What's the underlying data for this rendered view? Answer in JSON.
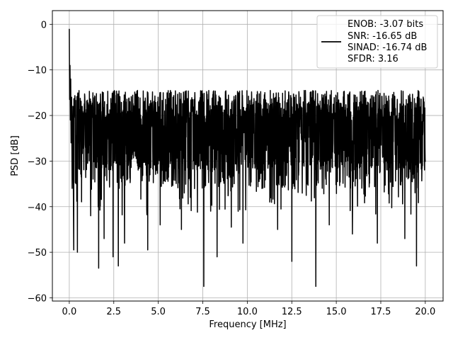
{
  "chart_data": {
    "type": "line",
    "xlabel": "Frequency [MHz]",
    "ylabel": "PSD [dB]",
    "xlim": [
      -0.95,
      21.0
    ],
    "ylim": [
      -60.7,
      3.0
    ],
    "xticks": [
      0.0,
      2.5,
      5.0,
      7.5,
      10.0,
      12.5,
      15.0,
      17.5,
      20.0
    ],
    "xtick_labels": [
      "0.0",
      "2.5",
      "5.0",
      "7.5",
      "10.0",
      "12.5",
      "15.0",
      "17.5",
      "20.0"
    ],
    "yticks": [
      0,
      -10,
      -20,
      -30,
      -40,
      -50,
      -60
    ],
    "ytick_labels": [
      "0",
      "−10",
      "−20",
      "−30",
      "−40",
      "−50",
      "−60"
    ],
    "grid": true,
    "legend_position": "top-right",
    "series_color": "#000000",
    "legend_lines": [
      "ENOB: -3.07 bits",
      "SNR: -16.65 dB",
      "SINAD: -16.74 dB",
      "SFDR: 3.16"
    ],
    "series": [
      {
        "x_start": 0.0,
        "x_end": 20.0,
        "start_points": [
          [
            0.0,
            -1.0
          ],
          [
            0.02,
            -16.5
          ],
          [
            0.04,
            -9.0
          ],
          [
            0.06,
            -21.0
          ],
          [
            0.08,
            -12.0
          ],
          [
            0.1,
            -26.0
          ],
          [
            0.13,
            -16.0
          ],
          [
            0.16,
            -36.0
          ],
          [
            0.2,
            -18.0
          ],
          [
            0.25,
            -49.5
          ]
        ],
        "baseline_mean": -24.5,
        "baseline_spread": 7.5,
        "upper_envelope": -12.5,
        "deep_nulls": [
          [
            0.45,
            -50.0
          ],
          [
            1.2,
            -42.0
          ],
          [
            1.65,
            -53.5
          ],
          [
            1.95,
            -47.0
          ],
          [
            2.45,
            -51.0
          ],
          [
            2.75,
            -53.0
          ],
          [
            3.1,
            -48.0
          ],
          [
            4.4,
            -49.5
          ],
          [
            5.1,
            -44.0
          ],
          [
            6.3,
            -45.0
          ],
          [
            7.55,
            -57.5
          ],
          [
            8.3,
            -51.0
          ],
          [
            9.1,
            -44.5
          ],
          [
            9.75,
            -48.0
          ],
          [
            11.7,
            -45.0
          ],
          [
            12.5,
            -52.0
          ],
          [
            13.85,
            -57.5
          ],
          [
            14.6,
            -44.0
          ],
          [
            15.9,
            -46.0
          ],
          [
            17.3,
            -48.0
          ],
          [
            18.85,
            -47.0
          ],
          [
            19.5,
            -53.0
          ]
        ]
      }
    ]
  }
}
